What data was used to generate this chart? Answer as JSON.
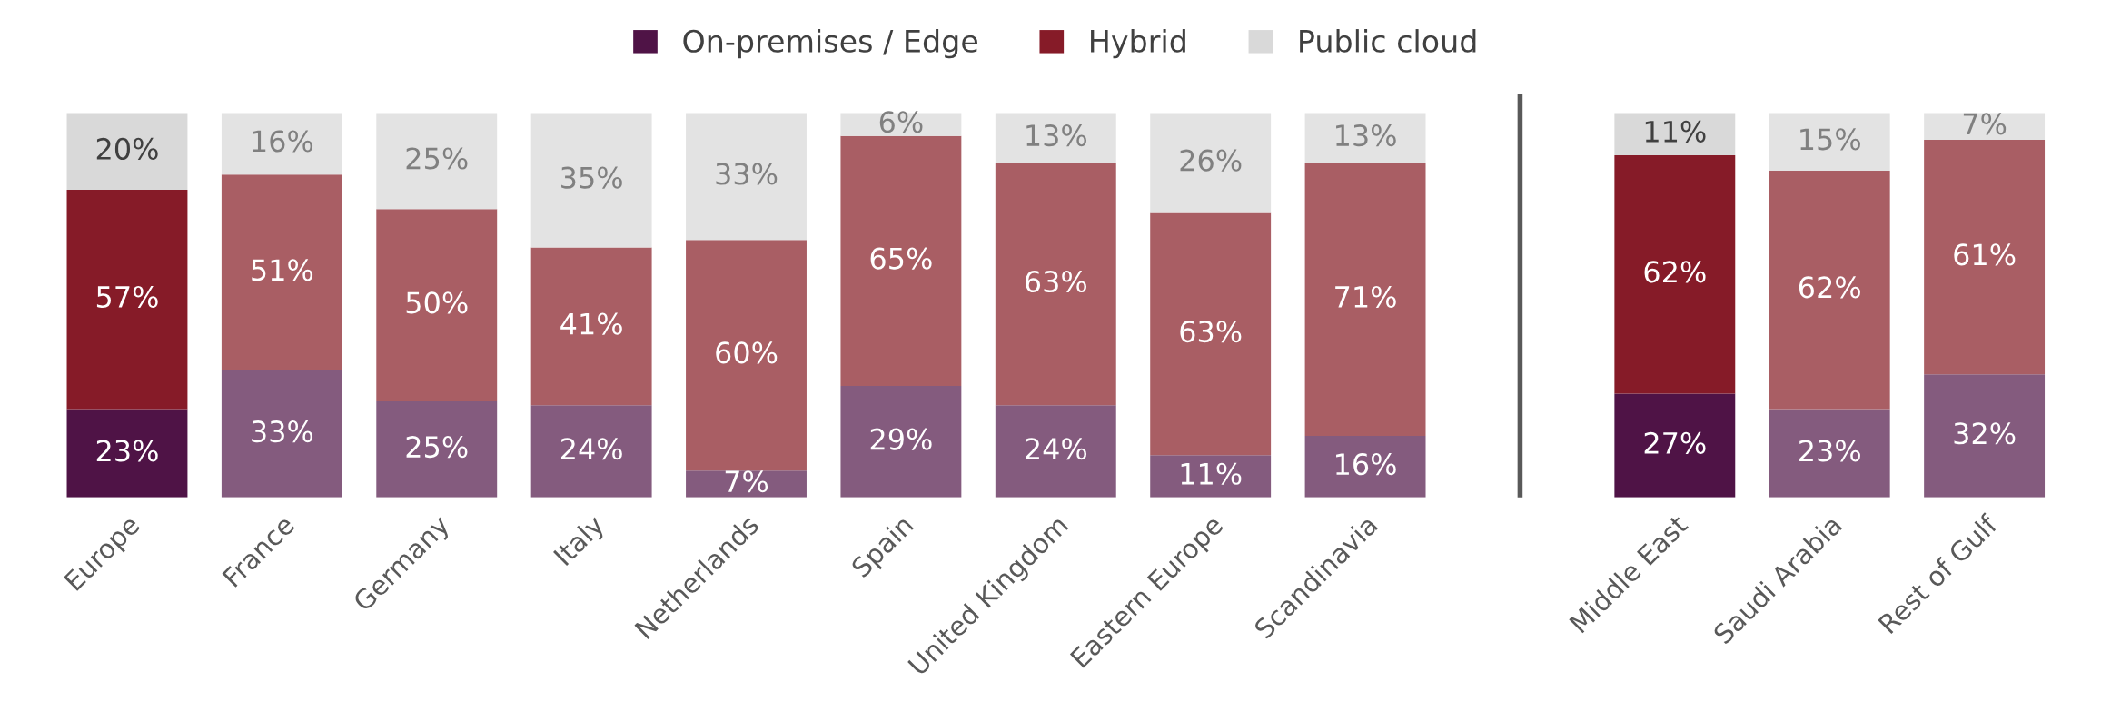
{
  "chart_data": {
    "type": "bar",
    "stacked": true,
    "legend": "top",
    "categories": [
      "Europe",
      "France",
      "Germany",
      "Italy",
      "Netherlands",
      "Spain",
      "United Kingdom",
      "Eastern Europe",
      "Scandinavia",
      null,
      "Middle East",
      "Saudi Arabia",
      "Rest of Gulf"
    ],
    "series": [
      {
        "name": "On-premises / Edge",
        "color": "#4f1346",
        "colors": [
          "#4f1346",
          "#845b7e",
          "#845b7e",
          "#845b7e",
          "#845b7e",
          "#845b7e",
          "#845b7e",
          "#845b7e",
          "#845b7e",
          null,
          "#4f1346",
          "#845b7e",
          "#845b7e"
        ],
        "values": [
          23,
          33,
          25,
          24,
          7,
          29,
          24,
          11,
          16,
          null,
          27,
          23,
          32
        ],
        "value_labels": [
          "23%",
          "33%",
          "25%",
          "24%",
          "7%",
          "29%",
          "24%",
          "11%",
          "16%",
          null,
          "27%",
          "23%",
          "32%"
        ]
      },
      {
        "name": "Hybrid",
        "color": "#861b28",
        "colors": [
          "#861b28",
          "#a95e64",
          "#a95e64",
          "#a95e64",
          "#a95e64",
          "#a95e64",
          "#a95e64",
          "#a95e64",
          "#a95e64",
          null,
          "#861b28",
          "#a95e64",
          "#a95e64"
        ],
        "values": [
          57,
          51,
          50,
          41,
          60,
          65,
          63,
          63,
          71,
          null,
          62,
          62,
          61
        ],
        "value_labels": [
          "57%",
          "51%",
          "50%",
          "41%",
          "60%",
          "65%",
          "63%",
          "63%",
          "71%",
          null,
          "62%",
          "62%",
          "61%"
        ]
      },
      {
        "name": "Public cloud",
        "color": "#d9d9d9",
        "colors": [
          "#d9d9d9",
          "#e3e3e3",
          "#e3e3e3",
          "#e3e3e3",
          "#e3e3e3",
          "#e3e3e3",
          "#e3e3e3",
          "#e3e3e3",
          "#e3e3e3",
          null,
          "#d9d9d9",
          "#e3e3e3",
          "#e3e3e3"
        ],
        "values": [
          20,
          16,
          25,
          35,
          33,
          6,
          13,
          26,
          13,
          null,
          11,
          15,
          7
        ],
        "value_labels": [
          "20%",
          "16%",
          "25%",
          "35%",
          "33%",
          "6%",
          "13%",
          "26%",
          "13%",
          null,
          "11%",
          "15%",
          "7%"
        ]
      }
    ]
  }
}
